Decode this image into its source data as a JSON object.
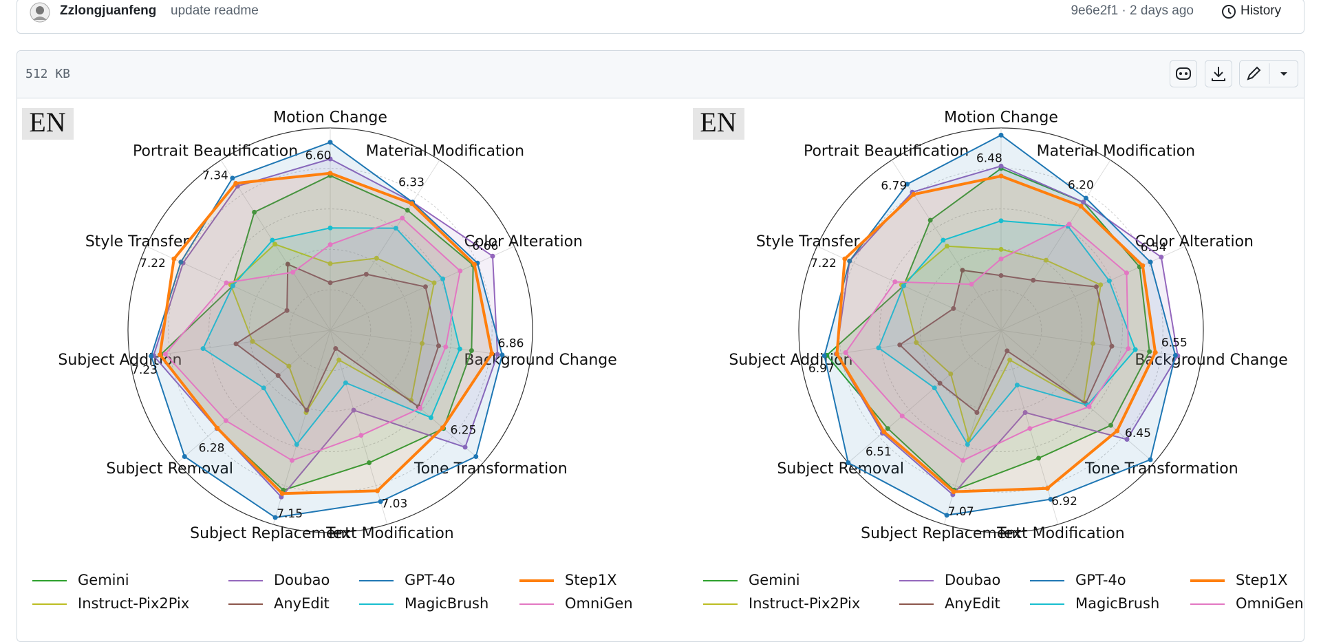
{
  "commit": {
    "author": "Zzlongjuanfeng",
    "message": "update readme",
    "meta": "9e6e2f1 · 2 days ago",
    "history": "History"
  },
  "file": {
    "size": "512 KB"
  },
  "chart_data": [
    {
      "type": "radar",
      "badge": "EN",
      "categories": [
        "Motion Change",
        "Material Modification",
        "Color Alteration",
        "Background Change",
        "Tone Transformation",
        "Text Modification",
        "Subject Replacement",
        "Subject Removal",
        "Subject Addition",
        "Style Transfer",
        "Portrait Beautification"
      ],
      "rlim": [
        0,
        8.5
      ],
      "series": [
        {
          "name": "Gemini",
          "color": "#2ca02c",
          "values": [
            6.5,
            6.0,
            6.6,
            6.0,
            6.3,
            5.8,
            7.0,
            6.3,
            7.2,
            4.5,
            5.9
          ]
        },
        {
          "name": "Doubao",
          "color": "#9467bd",
          "values": [
            7.2,
            6.4,
            7.5,
            7.1,
            7.5,
            3.5,
            7.3,
            6.3,
            7.5,
            6.8,
            7.2
          ]
        },
        {
          "name": "GPT-4o",
          "color": "#1f77b4",
          "values": [
            7.9,
            6.4,
            6.8,
            7.3,
            8.1,
            7.5,
            8.2,
            8.1,
            7.6,
            6.9,
            7.6
          ]
        },
        {
          "name": "Step1X",
          "color": "#ff7f0e",
          "values": [
            6.6,
            6.33,
            6.66,
            6.86,
            6.25,
            7.03,
            7.15,
            6.28,
            7.23,
            7.22,
            7.34
          ],
          "value_labels": [
            "6.60",
            "6.33",
            "6.66",
            "6.86",
            "6.25",
            "7.03",
            "7.15",
            "6.28",
            "7.23",
            "7.22",
            "7.34"
          ]
        },
        {
          "name": "Instruct-Pix2Pix",
          "color": "#bcbd22",
          "values": [
            2.8,
            3.6,
            4.8,
            3.9,
            4.5,
            1.3,
            3.6,
            2.3,
            3.3,
            4.6,
            4.3
          ]
        },
        {
          "name": "AnyEdit",
          "color": "#8c564b",
          "values": [
            2.0,
            2.8,
            4.4,
            4.6,
            4.9,
            0.8,
            3.5,
            2.9,
            4.0,
            2.0,
            3.3
          ]
        },
        {
          "name": "MagicBrush",
          "color": "#17becf",
          "values": [
            4.3,
            5.1,
            5.2,
            5.5,
            5.6,
            2.3,
            5.0,
            3.7,
            5.4,
            4.5,
            4.5
          ]
        },
        {
          "name": "OmniGen",
          "color": "#e377c2",
          "values": [
            3.6,
            5.6,
            6.0,
            4.9,
            5.0,
            4.6,
            5.7,
            5.8,
            7.0,
            4.8,
            2.9
          ]
        }
      ]
    },
    {
      "type": "radar",
      "badge": "EN",
      "categories": [
        "Motion Change",
        "Material Modification",
        "Color Alteration",
        "Background Change",
        "Tone Transformation",
        "Text Modification",
        "Subject Replacement",
        "Subject Removal",
        "Subject Addition",
        "Style Transfer",
        "Portrait Beautification"
      ],
      "rlim": [
        0,
        8.5
      ],
      "series": [
        {
          "name": "Gemini",
          "color": "#2ca02c",
          "values": [
            6.8,
            6.4,
            6.4,
            6.3,
            6.1,
            5.6,
            7.0,
            6.3,
            7.4,
            4.5,
            5.5
          ]
        },
        {
          "name": "Doubao",
          "color": "#9467bd",
          "values": [
            6.9,
            6.4,
            7.4,
            7.5,
            7.0,
            3.6,
            7.2,
            6.6,
            7.0,
            7.0,
            6.9
          ]
        },
        {
          "name": "GPT-4o",
          "color": "#1f77b4",
          "values": [
            8.2,
            6.6,
            6.9,
            7.4,
            8.3,
            7.4,
            8.1,
            8.5,
            7.5,
            7.0,
            7.3
          ]
        },
        {
          "name": "Step1X",
          "color": "#ff7f0e",
          "values": [
            6.48,
            6.2,
            6.54,
            6.55,
            6.45,
            6.92,
            7.07,
            6.51,
            6.97,
            7.22,
            6.79
          ],
          "value_labels": [
            "6.48",
            "6.20",
            "6.54",
            "6.55",
            "6.45",
            "6.92",
            "7.07",
            "6.51",
            "6.97",
            "7.22",
            "6.79"
          ]
        },
        {
          "name": "Instruct-Pix2Pix",
          "color": "#bcbd22",
          "values": [
            3.4,
            3.5,
            4.6,
            3.9,
            4.6,
            1.3,
            4.8,
            2.8,
            3.6,
            4.6,
            4.2
          ]
        },
        {
          "name": "AnyEdit",
          "color": "#8c564b",
          "values": [
            2.3,
            2.5,
            4.4,
            4.7,
            4.7,
            0.9,
            3.6,
            3.4,
            4.3,
            2.2,
            3.0
          ]
        },
        {
          "name": "MagicBrush",
          "color": "#17becf",
          "values": [
            4.6,
            5.2,
            5.0,
            5.7,
            4.8,
            2.4,
            5.0,
            3.7,
            5.2,
            4.5,
            4.5
          ]
        },
        {
          "name": "OmniGen",
          "color": "#e377c2",
          "values": [
            3.0,
            5.3,
            5.8,
            5.4,
            4.9,
            4.3,
            5.7,
            5.5,
            6.6,
            4.9,
            2.3
          ]
        }
      ]
    }
  ]
}
